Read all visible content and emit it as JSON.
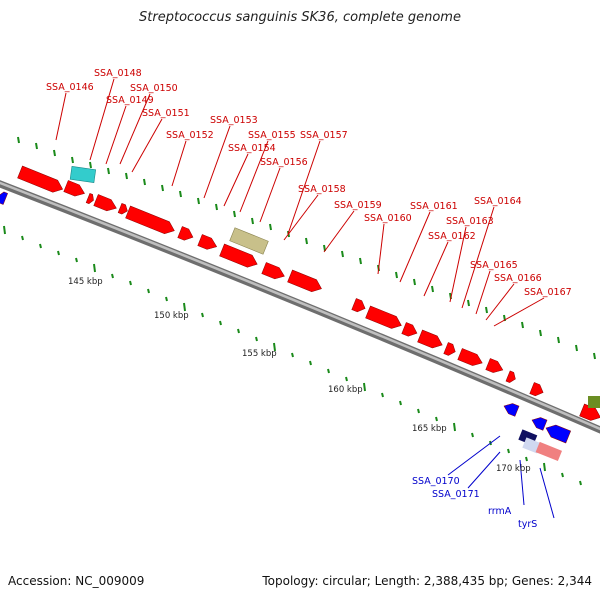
{
  "title": "Streptococcus sanguinis SK36, complete genome",
  "footer": {
    "accession": "Accession: NC_009009",
    "summary": "Topology: circular; Length: 2,388,435 bp; Genes: 2,344"
  },
  "colors": {
    "forward": "#ff0000",
    "reverse": "#0000ff",
    "tick": "#1a8a1a",
    "backbone": "#8a8a8a",
    "label_forward": "#cc0000",
    "label_reverse": "#0000cc"
  },
  "scale_labels": [
    "145 kbp",
    "150 kbp",
    "155 kbp",
    "160 kbp",
    "165 kbp",
    "170 kbp"
  ],
  "forward_labels": [
    "SSA_0146",
    "SSA_0148",
    "SSA_0149",
    "SSA_0150",
    "SSA_0151",
    "SSA_0152",
    "SSA_0153",
    "SSA_0154",
    "SSA_0155",
    "SSA_0156",
    "SSA_0157",
    "SSA_0158",
    "SSA_0159",
    "SSA_0160",
    "SSA_0161",
    "SSA_0162",
    "SSA_0163",
    "SSA_0164",
    "SSA_0165",
    "SSA_0166",
    "SSA_0167"
  ],
  "reverse_labels": [
    "SSA_0170",
    "SSA_0171",
    "rrmA",
    "tyrS"
  ]
}
